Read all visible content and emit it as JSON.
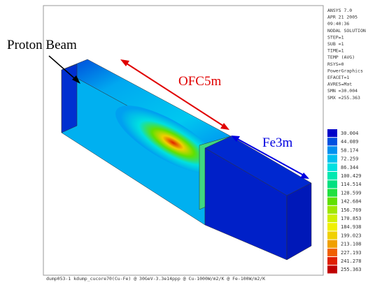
{
  "info": [
    "ANSYS 7.0",
    "APR 21 2005",
    "09:40:36",
    "NODAL SOLUTION",
    "STEP=1",
    "SUB =1",
    "TIME=1",
    "TEMP     (AVG)",
    "RSYS=0",
    "PowerGraphics",
    "EFACET=1",
    "AVRES=Mat",
    "SMN =30.004",
    "SMX =255.363"
  ],
  "legend": {
    "labels": [
      "30.004",
      "44.089",
      "58.174",
      "72.259",
      "86.344",
      "100.429",
      "114.514",
      "128.599",
      "142.684",
      "156.769",
      "170.853",
      "184.938",
      "199.023",
      "213.108",
      "227.193",
      "241.278",
      "255.363"
    ],
    "colors": [
      "#0000c8",
      "#0050e0",
      "#0090f0",
      "#00c0f0",
      "#00e0e0",
      "#00e8b0",
      "#00e080",
      "#20e040",
      "#60e000",
      "#a0e800",
      "#d0f000",
      "#f0f000",
      "#f0d000",
      "#f0a000",
      "#f06000",
      "#e02000",
      "#c00000"
    ]
  },
  "annotations": {
    "beam": "Proton Beam",
    "cu": "OFC5m",
    "fe": "Fe3m"
  },
  "footer": "dump053-1 kdump_cucore70(Cu-Fe) @ 30GeV-3.3e14ppp @ Cu-1000W/m2/K @ Fe-100W/m2/K"
}
